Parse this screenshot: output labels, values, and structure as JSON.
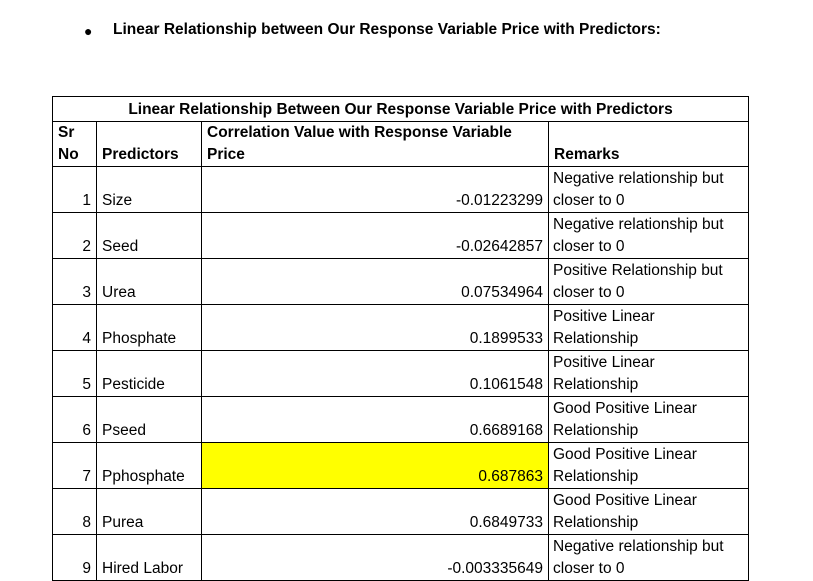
{
  "heading": "Linear Relationship between Our Response Variable Price with Predictors:",
  "table": {
    "title": "Linear Relationship Between Our Response Variable Price with Predictors",
    "headers": {
      "sr": "Sr No",
      "predictors": "Predictors",
      "correlation": "Correlation Value with Response Variable Price",
      "remarks": "Remarks"
    },
    "rows": [
      {
        "sr": "1",
        "predictor": "Size",
        "value": "-0.01223299",
        "remark": "Negative relationship but closer to 0"
      },
      {
        "sr": "2",
        "predictor": "Seed",
        "value": "-0.02642857",
        "remark": "Negative relationship but closer to 0"
      },
      {
        "sr": "3",
        "predictor": "Urea",
        "value": "0.07534964",
        "remark": "Positive Relationship but closer to 0"
      },
      {
        "sr": "4",
        "predictor": "Phosphate",
        "value": "0.1899533",
        "remark": "Positive Linear Relationship"
      },
      {
        "sr": "5",
        "predictor": "Pesticide",
        "value": "0.1061548",
        "remark": "Positive Linear Relationship"
      },
      {
        "sr": "6",
        "predictor": "Pseed",
        "value": "0.6689168",
        "remark": "Good Positive Linear Relationship"
      },
      {
        "sr": "7",
        "predictor": "Pphosphate",
        "value": "0.687863",
        "remark": "Good Positive Linear Relationship",
        "highlight": "#ffff00"
      },
      {
        "sr": "8",
        "predictor": "Purea",
        "value": "0.6849733",
        "remark": "Good Positive Linear Relationship"
      },
      {
        "sr": "9",
        "predictor": "Hired Labor",
        "value": "-0.003335649",
        "remark": "Negative relationship but closer to 0"
      }
    ]
  }
}
